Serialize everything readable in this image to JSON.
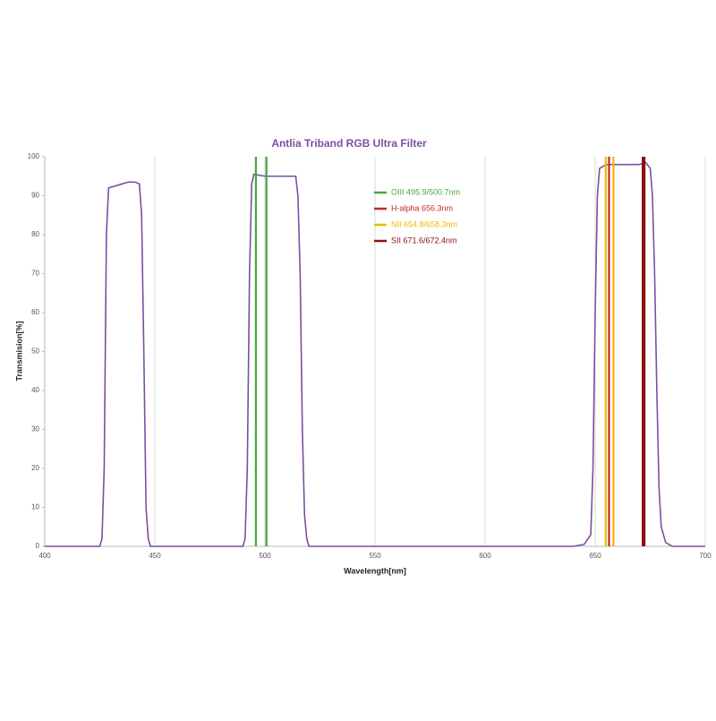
{
  "chart_data": {
    "type": "line",
    "title": "Antlia Triband RGB Ultra Filter",
    "x_label": "Wavelength[nm]",
    "y_label": "Transmision[%]",
    "xlim": [
      400,
      700
    ],
    "xticks": [
      400,
      450,
      500,
      550,
      600,
      650,
      700
    ],
    "ylim": [
      0,
      100
    ],
    "yticks": [
      0,
      10,
      20,
      30,
      40,
      50,
      60,
      70,
      80,
      90,
      100
    ],
    "grid": "x",
    "series": [
      {
        "color": "#7a4fa0",
        "x": [
          400,
          425,
          426,
          427,
          428,
          429,
          432,
          435,
          438,
          441,
          443,
          444,
          445,
          446,
          447,
          448,
          470,
          490,
          491,
          492,
          493,
          494,
          495,
          500,
          505,
          510,
          514,
          515,
          516,
          517,
          518,
          519,
          520,
          640,
          645,
          648,
          649,
          650,
          651,
          652,
          655,
          660,
          665,
          670,
          673,
          675,
          676,
          677,
          678,
          679,
          680,
          682,
          685,
          700
        ],
        "values": [
          0,
          0,
          2,
          20,
          80,
          92,
          92.5,
          93,
          93.5,
          93.5,
          93,
          85,
          50,
          10,
          2,
          0,
          0,
          0,
          2,
          20,
          70,
          93,
          95.5,
          95,
          95,
          95,
          95,
          90,
          70,
          30,
          8,
          2,
          0,
          0,
          0.5,
          3,
          20,
          60,
          90,
          97,
          98,
          98,
          98,
          98,
          98.5,
          97,
          90,
          70,
          40,
          15,
          5,
          1,
          0,
          0
        ]
      }
    ],
    "emission_lines": [
      {
        "name": "OIII 495.9/500.7nm",
        "color": "#45a83e",
        "x": [
          495.9,
          500.7
        ]
      },
      {
        "name": "H-alpha 656.3nm",
        "color": "#c62828",
        "x": [
          656.3
        ]
      },
      {
        "name": "NII 654.8/658.3nm",
        "color": "#f0b800",
        "x": [
          654.8,
          658.3
        ]
      },
      {
        "name": "SII 671.6/672.4nm",
        "color": "#8b1010",
        "x": [
          671.6,
          672.4
        ]
      }
    ]
  }
}
